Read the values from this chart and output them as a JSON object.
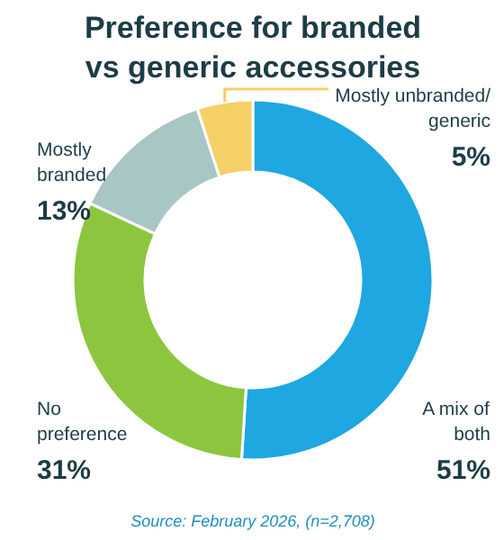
{
  "chart_data": {
    "type": "donut",
    "title": "Preference for branded vs generic accessories",
    "categories": [
      "A mix of both",
      "No preference",
      "Mostly branded",
      "Mostly unbranded/ generic"
    ],
    "values": [
      51,
      31,
      13,
      5
    ],
    "colors": [
      "#1ea7e1",
      "#8cc63f",
      "#a8c6c4",
      "#f5d067"
    ],
    "value_labels": [
      "51%",
      "31%",
      "13%",
      "5%"
    ],
    "annotations": [
      "Source: February 2026, (n=2,708)"
    ]
  }
}
